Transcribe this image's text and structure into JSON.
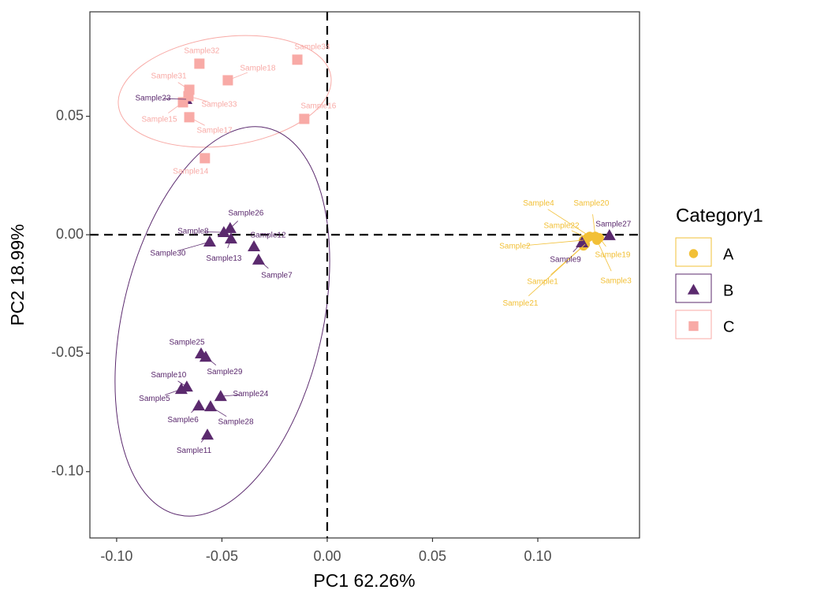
{
  "chart_data": {
    "type": "scatter",
    "x_label": "PC1 62.26%",
    "y_label": "PC2 18.99%",
    "legend_title": "Category1",
    "legend": "right",
    "grid": false,
    "hline": 0,
    "vline": 0,
    "xlim": [
      -0.1127,
      0.1483
    ],
    "ylim": [
      -0.128,
      0.0941
    ],
    "xticks": [
      {
        "value": -0.1,
        "label": "-0.10"
      },
      {
        "value": -0.05,
        "label": "-0.05"
      },
      {
        "value": 0,
        "label": "0.00"
      },
      {
        "value": 0.05,
        "label": "0.05"
      },
      {
        "value": 0.1,
        "label": "0.10"
      }
    ],
    "yticks": [
      {
        "value": -0.1,
        "label": "-0.10"
      },
      {
        "value": -0.05,
        "label": "-0.05"
      },
      {
        "value": 0,
        "label": "0.00"
      },
      {
        "value": 0.05,
        "label": "0.05"
      }
    ],
    "series": [
      {
        "name": "A",
        "color": "#f2c037",
        "shape": "circle",
        "labels": [
          "Sample4",
          "Sample20",
          "Sample22",
          "Sample2",
          "Sample19",
          "Sample1",
          "Sample3",
          "Sample21"
        ],
        "x": [
          0.1247,
          0.1273,
          0.1236,
          0.1217,
          0.1292,
          0.1225,
          0.1281,
          0.1217
        ],
        "values": [
          -0.0007,
          -0.0007,
          -0.0013,
          -0.0023,
          -0.0013,
          -0.004,
          -0.0023,
          -0.0047
        ]
      },
      {
        "name": "B",
        "color": "#5b2a6e",
        "shape": "triangle",
        "labels": [
          "Sample23",
          "Sample26",
          "Sample8",
          "Sample12",
          "Sample30",
          "Sample13",
          "Sample7",
          "Sample25",
          "Sample29",
          "Sample10",
          "Sample5",
          "Sample24",
          "Sample6",
          "Sample28",
          "Sample11",
          "Sample9",
          "Sample27"
        ],
        "x": [
          -0.067,
          -0.0461,
          -0.0491,
          -0.0348,
          -0.0558,
          -0.0457,
          -0.0326,
          -0.0599,
          -0.0577,
          -0.0667,
          -0.0693,
          -0.0506,
          -0.061,
          -0.0554,
          -0.0569,
          0.121,
          0.134
        ],
        "values": [
          0.0572,
          0.0027,
          0.001,
          -0.005,
          -0.003,
          -0.0017,
          -0.0106,
          -0.0502,
          -0.0516,
          -0.0642,
          -0.0652,
          -0.0682,
          -0.0722,
          -0.0725,
          -0.0845,
          -0.0033,
          -0.0003
        ]
      },
      {
        "name": "C",
        "color": "#f8aaa6",
        "shape": "square",
        "labels": [
          "Sample32",
          "Sample34",
          "Sample18",
          "Sample31",
          "Sample33",
          "Sample15",
          "Sample17",
          "Sample16",
          "Sample14"
        ],
        "x": [
          -0.0607,
          -0.0142,
          -0.0472,
          -0.0655,
          -0.0659,
          -0.0685,
          -0.0655,
          -0.0109,
          -0.0581
        ],
        "values": [
          0.0722,
          0.0739,
          0.0652,
          0.0612,
          0.0585,
          0.0559,
          0.0496,
          0.0489,
          0.0323
        ]
      }
    ]
  }
}
